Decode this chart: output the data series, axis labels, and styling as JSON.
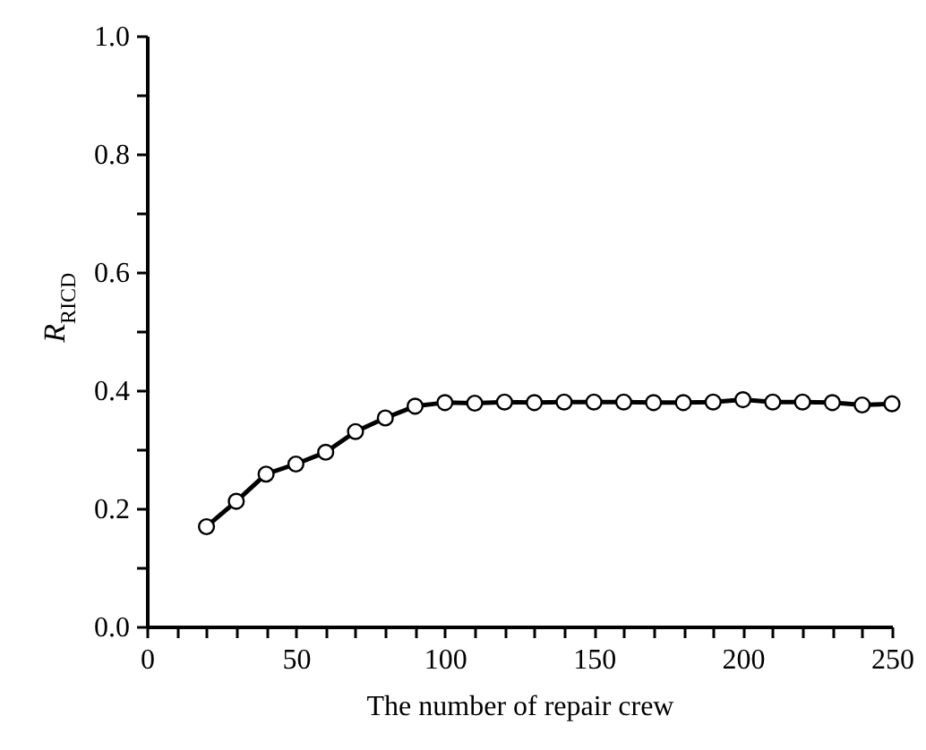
{
  "chart_data": {
    "type": "line",
    "xlabel": "The number of repair crew",
    "ylabel": "R$_{RICD}$",
    "x": [
      20,
      30,
      40,
      50,
      60,
      70,
      80,
      90,
      100,
      110,
      120,
      130,
      140,
      150,
      160,
      170,
      180,
      190,
      200,
      210,
      220,
      230,
      240,
      250
    ],
    "series": [
      {
        "color": "#000000",
        "values": [
          0.169,
          0.212,
          0.258,
          0.275,
          0.295,
          0.33,
          0.353,
          0.373,
          0.379,
          0.378,
          0.38,
          0.379,
          0.38,
          0.38,
          0.38,
          0.379,
          0.379,
          0.38,
          0.384,
          0.38,
          0.38,
          0.379,
          0.375,
          0.377
        ]
      }
    ],
    "marker": "circle",
    "line_style": "solid",
    "grid": false,
    "xlim": [
      0,
      250
    ],
    "xticks": [
      0,
      {
        "value": 10,
        "label": null
      },
      {
        "value": 20,
        "label": null
      },
      {
        "value": 30,
        "label": null
      },
      {
        "value": 40,
        "label": null
      },
      50,
      {
        "value": 60,
        "label": null
      },
      {
        "value": 70,
        "label": null
      },
      {
        "value": 80,
        "label": null
      },
      {
        "value": 90,
        "label": null
      },
      100,
      {
        "value": 110,
        "label": null
      },
      {
        "value": 120,
        "label": null
      },
      {
        "value": 130,
        "label": null
      },
      {
        "value": 140,
        "label": null
      },
      150,
      {
        "value": 160,
        "label": null
      },
      {
        "value": 170,
        "label": null
      },
      {
        "value": 180,
        "label": null
      },
      {
        "value": 190,
        "label": null
      },
      200,
      {
        "value": 210,
        "label": null
      },
      {
        "value": 220,
        "label": null
      },
      {
        "value": 230,
        "label": null
      },
      {
        "value": 240,
        "label": null
      },
      250
    ],
    "ylim": [
      0,
      1
    ],
    "yticks": [
      {
        "value": 0,
        "label": "0.0"
      },
      {
        "value": 0.1,
        "label": null
      },
      {
        "value": 0.2,
        "label": "0.2"
      },
      {
        "value": 0.3,
        "label": null
      },
      {
        "value": 0.4,
        "label": "0.4"
      },
      {
        "value": 0.5,
        "label": null
      },
      {
        "value": 0.6,
        "label": "0.6"
      },
      {
        "value": 0.7,
        "label": null
      },
      {
        "value": 0.8,
        "label": "0.8"
      },
      {
        "value": 0.9,
        "label": null
      },
      {
        "value": 1,
        "label": "1.0"
      }
    ]
  }
}
